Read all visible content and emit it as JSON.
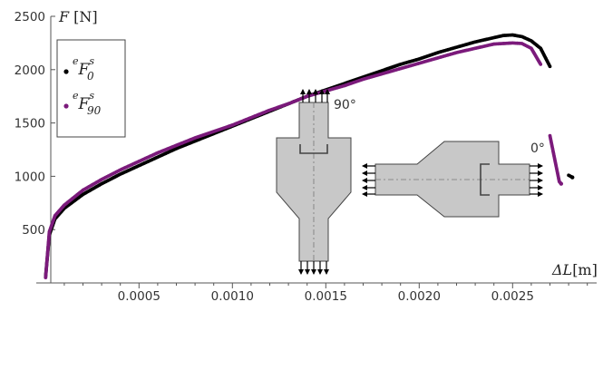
{
  "chart_data": {
    "type": "scatter",
    "title": "",
    "xlabel": {
      "symbol": "ΔL",
      "unit": "[m]"
    },
    "ylabel": {
      "symbol": "F",
      "unit": "[N]"
    },
    "xlim": [
      -5e-05,
      0.00295
    ],
    "ylim": [
      0,
      2500
    ],
    "x_ticks": [
      0.0005,
      0.001,
      0.0015,
      0.002,
      0.0025
    ],
    "x_tick_labels": [
      "0.0005",
      "0.0010",
      "0.0015",
      "0.0020",
      "0.0025"
    ],
    "y_ticks": [
      500,
      1000,
      1500,
      2000,
      2500
    ],
    "y_tick_labels": [
      "500",
      "1000",
      "1500",
      "2000",
      "2500"
    ],
    "grid": false,
    "legend_position": "top-left",
    "series": [
      {
        "name": "eF0s",
        "legend": {
          "pre": "e",
          "main": "F",
          "sub": "0",
          "sup": "s"
        },
        "color": "#000000",
        "x": [
          0.0,
          2e-05,
          5e-05,
          0.0001,
          0.0002,
          0.0003,
          0.0004,
          0.0005,
          0.0006,
          0.0007,
          0.0008,
          0.0009,
          0.001,
          0.0011,
          0.0012,
          0.0013,
          0.0014,
          0.0015,
          0.0016,
          0.0017,
          0.0018,
          0.0019,
          0.002,
          0.0021,
          0.0022,
          0.0023,
          0.0024,
          0.00245,
          0.0025,
          0.00255,
          0.0026,
          0.00265,
          0.0027,
          0.0028,
          0.00282
        ],
        "y": [
          60,
          450,
          600,
          700,
          830,
          930,
          1020,
          1100,
          1180,
          1260,
          1330,
          1400,
          1470,
          1540,
          1610,
          1680,
          1750,
          1810,
          1870,
          1930,
          1990,
          2050,
          2100,
          2160,
          2210,
          2260,
          2300,
          2320,
          2325,
          2310,
          2270,
          2200,
          2030,
          1010,
          990
        ]
      },
      {
        "name": "eF90s",
        "legend": {
          "pre": "e",
          "main": "F",
          "sub": "90",
          "sup": "s"
        },
        "color": "#7b1a7b",
        "x": [
          0.0,
          2e-05,
          5e-05,
          0.0001,
          0.0002,
          0.0003,
          0.0004,
          0.0005,
          0.0006,
          0.0007,
          0.0008,
          0.0009,
          0.001,
          0.0011,
          0.0012,
          0.0013,
          0.0014,
          0.0015,
          0.0016,
          0.0017,
          0.0018,
          0.0019,
          0.002,
          0.0021,
          0.0022,
          0.0023,
          0.0024,
          0.0025,
          0.00255,
          0.0026,
          0.00265,
          0.0027,
          0.00275,
          0.00276
        ],
        "y": [
          50,
          480,
          630,
          730,
          870,
          970,
          1060,
          1140,
          1220,
          1290,
          1360,
          1420,
          1480,
          1550,
          1620,
          1680,
          1750,
          1800,
          1850,
          1910,
          1960,
          2010,
          2060,
          2110,
          2160,
          2200,
          2240,
          2250,
          2245,
          2200,
          2050,
          1380,
          950,
          930
        ]
      }
    ],
    "inset": {
      "label_90": "90°",
      "label_0": "0°"
    }
  }
}
